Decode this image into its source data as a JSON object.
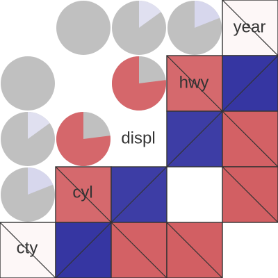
{
  "chart_data": {
    "type": "heatmap",
    "title": "",
    "variables": [
      "year",
      "hwy",
      "displ",
      "cyl",
      "cty"
    ],
    "matrix": [
      [
        1.0,
        0.0,
        0.15,
        0.19,
        -0.04
      ],
      [
        0.0,
        1.0,
        -0.77,
        -0.76,
        0.96
      ],
      [
        0.15,
        -0.77,
        1.0,
        0.93,
        -0.8
      ],
      [
        0.19,
        -0.76,
        0.93,
        1.0,
        -0.81
      ],
      [
        -0.04,
        0.96,
        -0.8,
        -0.81,
        1.0
      ]
    ],
    "upper_panel": "pie",
    "lower_panel": "shade",
    "diagonal": "variable-name",
    "scale": {
      "min": -1,
      "max": 1
    },
    "colors": {
      "positive": "#2e2e9e",
      "negative": "#c8393f",
      "neutral": "#ffffff",
      "pie_remainder": "#c0c0c0",
      "grid_line": "#333333",
      "label": "#333333"
    }
  }
}
